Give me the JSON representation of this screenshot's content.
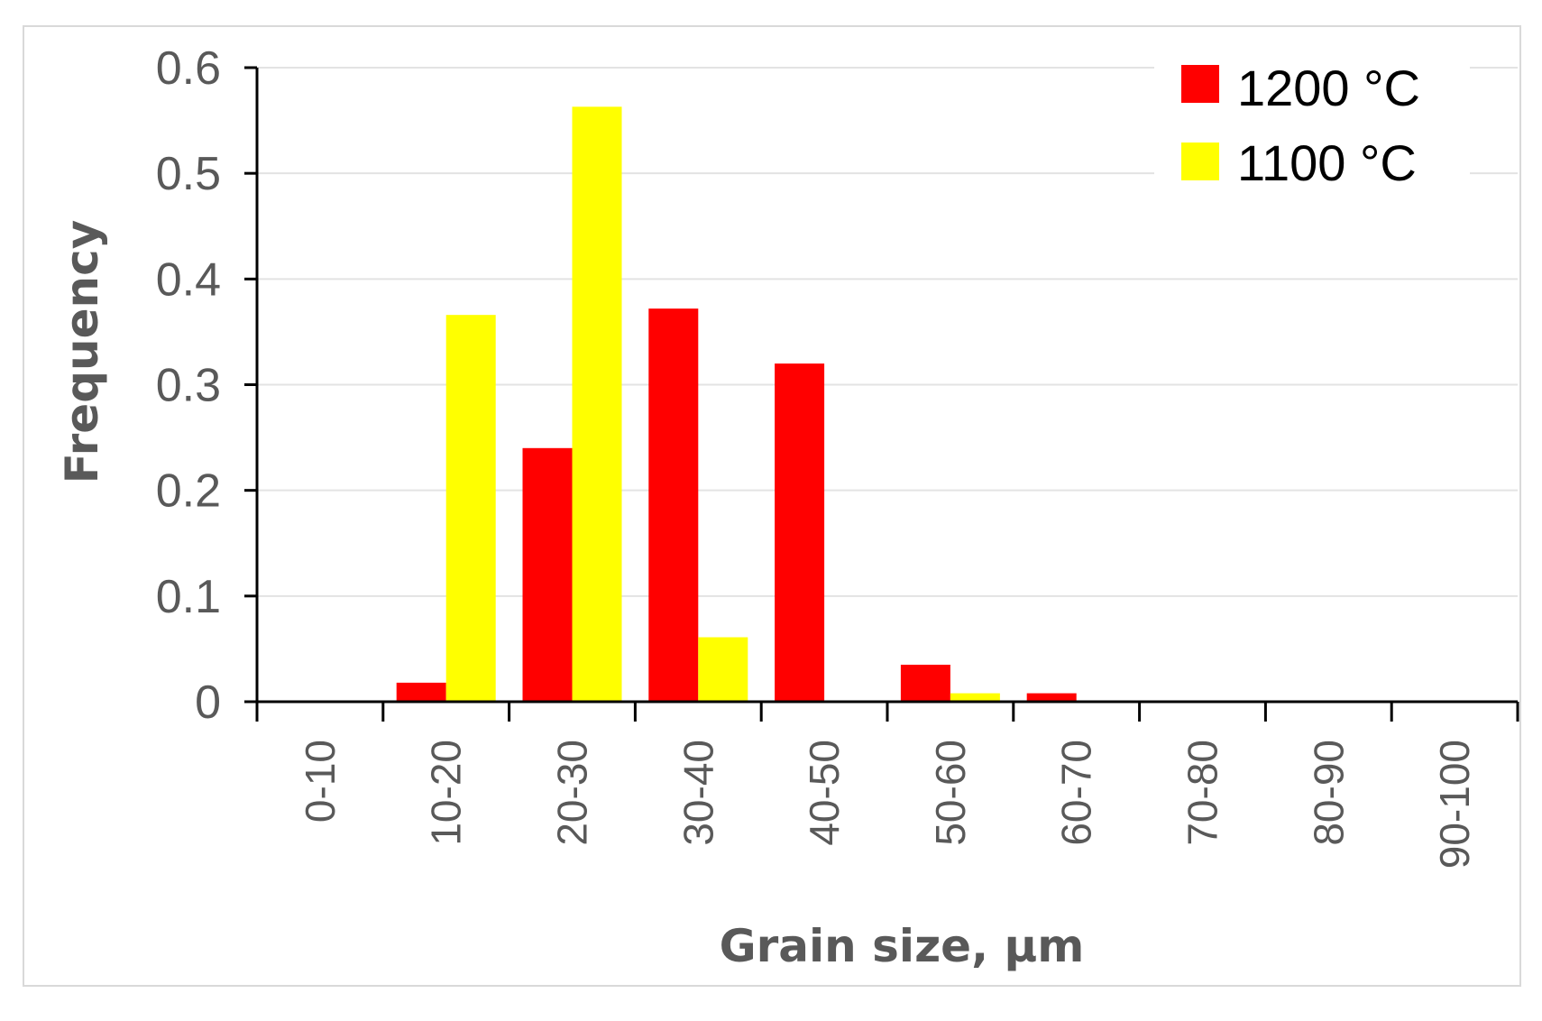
{
  "chart_data": {
    "type": "bar",
    "categories": [
      "0-10",
      "10-20",
      "20-30",
      "30-40",
      "40-50",
      "50-60",
      "60-70",
      "70-80",
      "80-90",
      "90-100"
    ],
    "series": [
      {
        "name": "1200 °C",
        "color": "#ff0000",
        "values": [
          0,
          0.018,
          0.24,
          0.372,
          0.32,
          0.035,
          0.008,
          0,
          0,
          0
        ]
      },
      {
        "name": "1100 °C",
        "color": "#ffff00",
        "values": [
          0,
          0.366,
          0.563,
          0.061,
          0,
          0.008,
          0,
          0,
          0,
          0
        ]
      }
    ],
    "xlabel": "Grain size, μm",
    "ylabel": "Frequency",
    "ylim": [
      0,
      0.6
    ],
    "yticks": [
      "0",
      "0.1",
      "0.2",
      "0.3",
      "0.4",
      "0.5",
      "0.6"
    ],
    "grid": true,
    "legend_position": "top-right"
  }
}
